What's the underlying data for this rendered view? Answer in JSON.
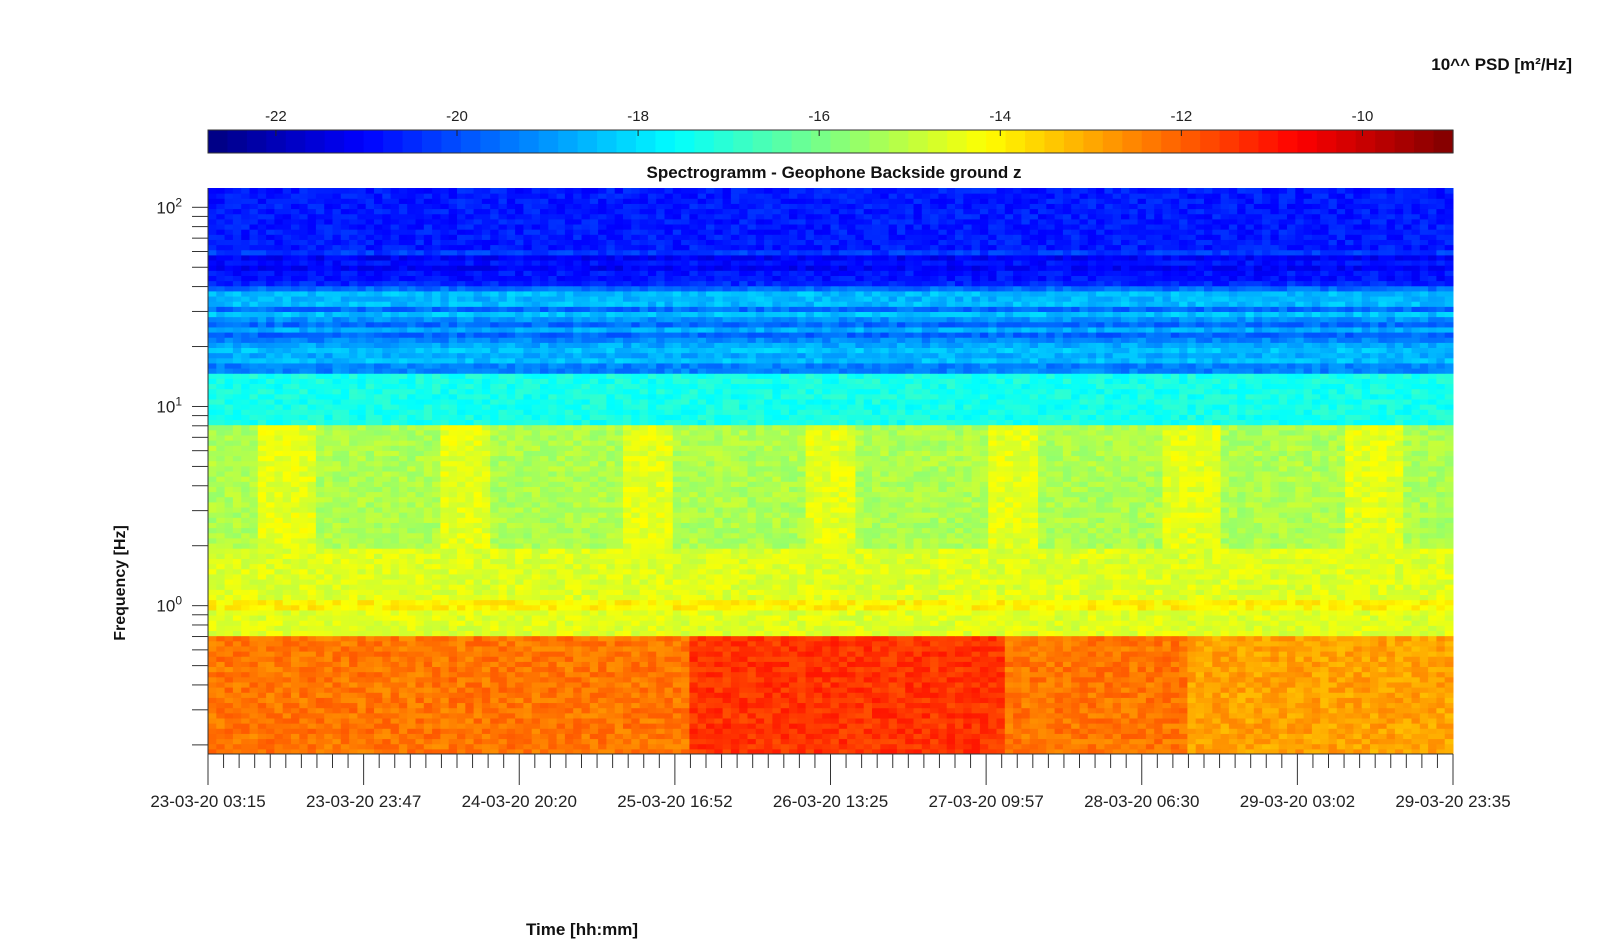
{
  "chart_data": {
    "type": "heatmap",
    "title": "Spectrogramm - Geophone Backside ground z",
    "xlabel": "Time [hh:mm]",
    "ylabel": "Frequency [Hz]",
    "x_tick_labels": [
      "23-03-20 03:15",
      "23-03-20 23:47",
      "24-03-20 20:20",
      "25-03-20 16:52",
      "26-03-20 13:25",
      "27-03-20 09:57",
      "28-03-20 06:30",
      "29-03-20 03:02",
      "29-03-20 23:35"
    ],
    "x_range": [
      "23-03-20 03:15",
      "29-03-20 23:35"
    ],
    "y_scale": "log",
    "y_ticks": [
      {
        "base": "10",
        "exp": "0",
        "value": 1
      },
      {
        "base": "10",
        "exp": "1",
        "value": 10
      },
      {
        "base": "10",
        "exp": "2",
        "value": 100
      }
    ],
    "y_range": [
      0.18,
      125
    ],
    "colorbar": {
      "label": "10^^ PSD [m²/Hz]",
      "ticks": [
        "-22",
        "-20",
        "-18",
        "-16",
        "-14",
        "-12",
        "-10"
      ],
      "tick_values": [
        -22,
        -20,
        -18,
        -16,
        -14,
        -12,
        -10
      ],
      "range": [
        -22.75,
        -9.0
      ],
      "colormap": "jet",
      "location": "top"
    },
    "grid": false,
    "description_bands": [
      {
        "freq_range": [
          40,
          125
        ],
        "log10_psd": -20.7
      },
      {
        "freq_range": [
          15,
          40
        ],
        "log10_psd": -19.0
      },
      {
        "freq_range": [
          8,
          15
        ],
        "log10_psd": -17.3
      },
      {
        "freq_range": [
          2,
          8
        ],
        "log10_psd": -15.2
      },
      {
        "freq_range": [
          0.7,
          2
        ],
        "log10_psd": -14.6
      },
      {
        "freq_range": [
          0.18,
          0.7
        ],
        "log10_psd": -12.3
      }
    ]
  }
}
